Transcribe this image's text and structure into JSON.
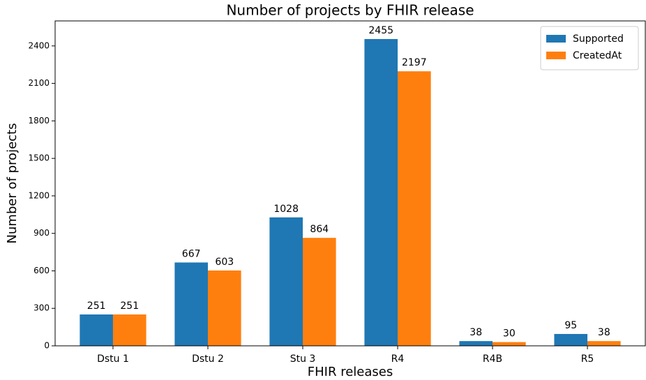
{
  "chart_data": {
    "type": "bar",
    "title": "Number of projects by FHIR release",
    "x_label": "FHIR releases",
    "y_label": "Number of projects",
    "categories": [
      "Dstu 1",
      "Dstu 2",
      "Stu 3",
      "R4",
      "R4B",
      "R5"
    ],
    "series": [
      {
        "name": "Supported",
        "color": "#1f77b4",
        "values": [
          251,
          667,
          1028,
          2455,
          38,
          95
        ]
      },
      {
        "name": "CreatedAt",
        "color": "#ff7f0e",
        "values": [
          251,
          603,
          864,
          2197,
          30,
          38
        ]
      }
    ],
    "ylim": [
      0,
      2600
    ],
    "yticks": [
      0,
      300,
      600,
      900,
      1200,
      1500,
      1800,
      2100,
      2400
    ],
    "legend": "upper right"
  }
}
